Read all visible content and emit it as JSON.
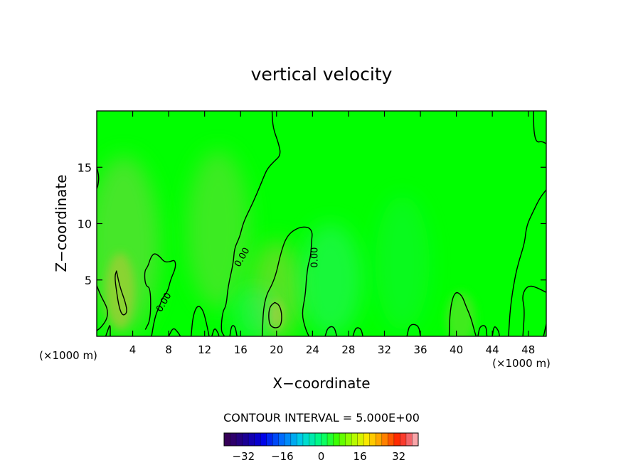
{
  "chart_data": {
    "type": "contour",
    "title": "vertical velocity",
    "xlabel": "X−coordinate",
    "ylabel": "Z−coordinate",
    "x_unit_left": "(×1000 m)",
    "x_unit_right": "(×1000 m)",
    "xlim": [
      0,
      50
    ],
    "ylim": [
      0,
      20
    ],
    "xticks": [
      4,
      8,
      12,
      16,
      20,
      24,
      28,
      32,
      36,
      40,
      44,
      48
    ],
    "xtick_labels": [
      "4",
      "8",
      "12",
      "16",
      "20",
      "24",
      "28",
      "32",
      "36",
      "40",
      "44",
      "48"
    ],
    "yticks": [
      5,
      10,
      15
    ],
    "ytick_labels": [
      "5",
      "10",
      "15"
    ],
    "contour_labels": [
      {
        "text": "0.00",
        "x": 7.5,
        "y": 3.0,
        "angle": -60
      },
      {
        "text": "0.00",
        "x": 16.2,
        "y": 7.0,
        "angle": -60
      },
      {
        "text": "0.00",
        "x": 24.3,
        "y": 7.0,
        "angle": -90
      }
    ],
    "contour_interval_text": "CONTOUR INTERVAL = 5.000E+00",
    "colorbar": {
      "min": -40,
      "max": 40,
      "step": 2.5,
      "tick_values": [
        -32,
        -16,
        0,
        16,
        32
      ],
      "tick_labels": [
        "−32",
        "−16",
        "0",
        "16",
        "32"
      ]
    },
    "background_color": "#00ff00",
    "contours": [
      {
        "name": "main-0-contour",
        "points": [
          [
            19.5,
            20
          ],
          [
            19.6,
            18.5
          ],
          [
            20.2,
            17.2
          ],
          [
            20.5,
            16.1
          ],
          [
            19.7,
            15.5
          ],
          [
            19.0,
            14.9
          ],
          [
            18.6,
            14.2
          ],
          [
            18.2,
            13.4
          ],
          [
            17.4,
            11.9
          ],
          [
            16.6,
            10.6
          ],
          [
            16.2,
            9.8
          ],
          [
            15.9,
            8.8
          ],
          [
            15.3,
            7.8
          ],
          [
            15.2,
            6.5
          ],
          [
            14.6,
            4.4
          ],
          [
            14.4,
            2.7
          ],
          [
            14.0,
            2.2
          ],
          [
            13.8,
            0.5
          ],
          [
            14.2,
            0
          ]
        ]
      },
      {
        "name": "plume-24-contour",
        "points": [
          [
            18.4,
            0
          ],
          [
            18.6,
            3.3
          ],
          [
            19.8,
            5.0
          ],
          [
            20.5,
            7.5
          ],
          [
            21.2,
            9.0
          ],
          [
            22.5,
            9.7
          ],
          [
            23.6,
            9.7
          ],
          [
            24.0,
            9.2
          ],
          [
            23.9,
            8.5
          ],
          [
            23.8,
            7.1
          ],
          [
            23.5,
            6.3
          ],
          [
            23.3,
            5.0
          ],
          [
            23.2,
            3.6
          ],
          [
            22.8,
            2.0
          ],
          [
            23.2,
            0.7
          ],
          [
            23.6,
            0
          ]
        ]
      },
      {
        "name": "plume-6-contour",
        "points": [
          [
            5.4,
            0.6
          ],
          [
            6.0,
            1.5
          ],
          [
            6.0,
            4.3
          ],
          [
            5.4,
            4.5
          ],
          [
            5.3,
            5.8
          ],
          [
            5.7,
            6.2
          ],
          [
            6.0,
            7.0
          ],
          [
            6.4,
            7.4
          ],
          [
            7.0,
            7.1
          ],
          [
            7.5,
            6.6
          ],
          [
            8.1,
            6.6
          ],
          [
            8.7,
            6.8
          ],
          [
            8.8,
            6.1
          ],
          [
            8.2,
            5.0
          ],
          [
            7.9,
            4.0
          ],
          [
            7.3,
            3.4
          ],
          [
            7.0,
            2.7
          ],
          [
            6.6,
            2.0
          ],
          [
            6.3,
            1.0
          ],
          [
            6.1,
            0
          ]
        ]
      },
      {
        "name": "left-edge-top-contour",
        "points": [
          [
            0,
            15.0
          ],
          [
            0.25,
            14.2
          ],
          [
            0.15,
            13.4
          ],
          [
            0,
            13.1
          ]
        ]
      },
      {
        "name": "left-edge-bottom-contour",
        "points": [
          [
            0,
            4.5
          ],
          [
            0.5,
            3.5
          ],
          [
            1.2,
            2.5
          ],
          [
            1.2,
            1.6
          ],
          [
            0.5,
            0.8
          ],
          [
            0,
            0.5
          ]
        ]
      },
      {
        "name": "left-lobe-contour",
        "points": [
          [
            1.0,
            0
          ],
          [
            1.3,
            0.7
          ],
          [
            1.5,
            1.1
          ],
          [
            1.5,
            0
          ]
        ]
      },
      {
        "name": "positive-cell-2-contour",
        "points": [
          [
            2.2,
            5.8
          ],
          [
            2.6,
            4.3
          ],
          [
            3.2,
            3.0
          ],
          [
            3.4,
            2.1
          ],
          [
            2.9,
            1.8
          ],
          [
            2.5,
            2.5
          ],
          [
            2.2,
            4.0
          ],
          [
            2.0,
            5.3
          ],
          [
            2.2,
            5.8
          ]
        ],
        "closed": true
      },
      {
        "name": "positive-cell-20-contour",
        "points": [
          [
            19.8,
            3.0
          ],
          [
            20.3,
            2.8
          ],
          [
            20.6,
            2.0
          ],
          [
            20.5,
            0.9
          ],
          [
            19.8,
            0.7
          ],
          [
            19.2,
            1.0
          ],
          [
            19.1,
            2.0
          ],
          [
            19.3,
            2.7
          ],
          [
            19.8,
            3.0
          ]
        ],
        "closed": true
      },
      {
        "name": "lobe-11-contour",
        "points": [
          [
            10.5,
            0
          ],
          [
            10.7,
            1.8
          ],
          [
            11.2,
            2.8
          ],
          [
            11.8,
            2.4
          ],
          [
            12.2,
            1.2
          ],
          [
            12.5,
            0
          ]
        ]
      },
      {
        "name": "lobe-40-contour",
        "points": [
          [
            39.2,
            0
          ],
          [
            39.3,
            2.4
          ],
          [
            39.8,
            4.0
          ],
          [
            40.6,
            3.7
          ],
          [
            41.1,
            2.6
          ],
          [
            41.6,
            1.7
          ],
          [
            42.0,
            0.5
          ],
          [
            42.2,
            0
          ]
        ]
      },
      {
        "name": "lobe-42-contour",
        "points": [
          [
            42.4,
            0
          ],
          [
            42.6,
            0.9
          ],
          [
            43.3,
            1.0
          ],
          [
            43.4,
            0
          ]
        ]
      },
      {
        "name": "lobe-44-contour",
        "points": [
          [
            44.0,
            0
          ],
          [
            44.2,
            1.0
          ],
          [
            44.7,
            0.5
          ],
          [
            44.8,
            0
          ]
        ]
      },
      {
        "name": "right-contour",
        "points": [
          [
            45.8,
            0
          ],
          [
            46.0,
            2.6
          ],
          [
            46.5,
            5.2
          ],
          [
            47.0,
            6.8
          ],
          [
            47.6,
            8.3
          ],
          [
            47.8,
            9.8
          ],
          [
            48.5,
            11.0
          ],
          [
            49.3,
            12.3
          ],
          [
            50,
            13.0
          ]
        ]
      },
      {
        "name": "right-lobe-contour",
        "points": [
          [
            47.4,
            0
          ],
          [
            47.6,
            2.4
          ],
          [
            47.3,
            3.5
          ],
          [
            47.7,
            4.3
          ],
          [
            48.3,
            4.5
          ],
          [
            49.0,
            4.3
          ],
          [
            50,
            3.9
          ]
        ]
      },
      {
        "name": "top-right-contour",
        "points": [
          [
            48.6,
            20
          ],
          [
            48.6,
            18.2
          ],
          [
            48.9,
            17.2
          ],
          [
            49.5,
            17.3
          ],
          [
            50,
            17.1
          ]
        ]
      },
      {
        "name": "bottom-right-contour",
        "points": [
          [
            49.7,
            0
          ],
          [
            50,
            1.1
          ]
        ]
      },
      {
        "name": "bottom-notch-8-contour",
        "points": [
          [
            8.0,
            0
          ],
          [
            8.5,
            0.8
          ],
          [
            9.0,
            0.4
          ],
          [
            9.3,
            0
          ]
        ]
      },
      {
        "name": "bottom-notch-13-contour",
        "points": [
          [
            12.8,
            0
          ],
          [
            13.1,
            0.8
          ],
          [
            13.5,
            0.3
          ],
          [
            13.6,
            0
          ]
        ]
      },
      {
        "name": "bottom-notch-15-contour",
        "points": [
          [
            14.8,
            0
          ],
          [
            15.0,
            1.0
          ],
          [
            15.4,
            0.9
          ],
          [
            15.6,
            0
          ]
        ]
      },
      {
        "name": "bottom-notch-25-contour",
        "points": [
          [
            25.4,
            0
          ],
          [
            25.7,
            0.8
          ],
          [
            26.4,
            0.9
          ],
          [
            26.7,
            0
          ]
        ]
      },
      {
        "name": "bottom-notch-29-contour",
        "points": [
          [
            28.5,
            0
          ],
          [
            28.8,
            0.8
          ],
          [
            29.4,
            0.7
          ],
          [
            29.6,
            0
          ]
        ]
      },
      {
        "name": "bottom-notch-35-contour",
        "points": [
          [
            34.5,
            0
          ],
          [
            34.8,
            1.1
          ],
          [
            35.8,
            1.0
          ],
          [
            36.0,
            0
          ]
        ]
      }
    ],
    "shaded_regions": [
      {
        "name": "shade-left-warm",
        "cx": 3.0,
        "cy": 8.0,
        "rx": 4.0,
        "ry": 8.0,
        "color": "#7fd34a",
        "opacity": 0.55
      },
      {
        "name": "shade-left-core",
        "cx": 2.6,
        "cy": 4.0,
        "rx": 1.6,
        "ry": 3.4,
        "color": "#b7c739",
        "opacity": 0.6
      },
      {
        "name": "shade-mid-warm",
        "cx": 13.5,
        "cy": 9.5,
        "rx": 3.5,
        "ry": 7.0,
        "color": "#86d24a",
        "opacity": 0.45
      },
      {
        "name": "shade-center-warm",
        "cx": 20.0,
        "cy": 4.0,
        "rx": 2.8,
        "ry": 4.5,
        "color": "#9fce3b",
        "opacity": 0.55
      },
      {
        "name": "shade-center-core",
        "cx": 19.9,
        "cy": 1.9,
        "rx": 0.8,
        "ry": 1.3,
        "color": "#c4c336",
        "opacity": 0.7
      },
      {
        "name": "shade-blue-25",
        "cx": 26.0,
        "cy": 5.0,
        "rx": 3.5,
        "ry": 5.0,
        "color": "#30f080",
        "opacity": 0.45
      },
      {
        "name": "shade-blue-18",
        "cx": 17.5,
        "cy": 2.0,
        "rx": 2.5,
        "ry": 2.5,
        "color": "#30f080",
        "opacity": 0.4
      },
      {
        "name": "shade-right-40",
        "cx": 40.5,
        "cy": 1.6,
        "rx": 1.6,
        "ry": 2.3,
        "color": "#8fd240",
        "opacity": 0.45
      },
      {
        "name": "shade-cyan-34",
        "cx": 34.0,
        "cy": 6.5,
        "rx": 3.0,
        "ry": 6.0,
        "color": "#20f060",
        "opacity": 0.3
      }
    ]
  }
}
